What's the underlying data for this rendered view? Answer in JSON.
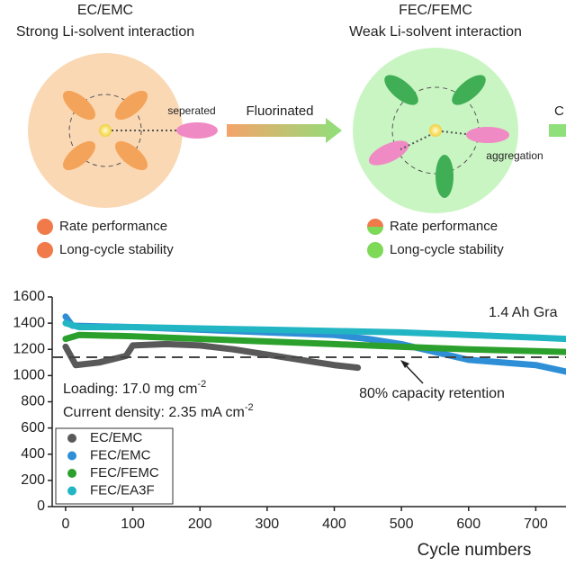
{
  "diagram": {
    "left": {
      "title": "EC/EMC",
      "subtitle": "Strong Li-solvent interaction",
      "label": "seperated"
    },
    "arrow_label": "Fluorinated",
    "right": {
      "title": "FEC/FEMC",
      "subtitle": "Weak Li-solvent interaction",
      "label": "aggregation"
    },
    "next_label": "C",
    "legend_left": [
      "Rate performance",
      "Long-cycle stability"
    ],
    "legend_right": [
      "Rate performance",
      "Long-cycle stability"
    ]
  },
  "chart_data": {
    "type": "line",
    "x_label": "Cycle numbers",
    "xlim": [
      -20,
      745
    ],
    "ylim": [
      0,
      1600
    ],
    "xticks": [
      0,
      100,
      200,
      300,
      400,
      500,
      600,
      700
    ],
    "yticks": [
      0,
      200,
      400,
      600,
      800,
      1000,
      1200,
      1400,
      1600
    ],
    "reference_line": 1140,
    "reference_label": "80% capacity retention",
    "cell_label": "1.4 Ah Gra",
    "conditions": [
      {
        "text": "Loading: 17.0 mg cm",
        "sup": "-2"
      },
      {
        "text": "Current density: 2.35 mA cm",
        "sup": "-2"
      }
    ],
    "series": [
      {
        "name": "EC/EMC",
        "color": "#595959",
        "x": [
          0,
          15,
          50,
          90,
          100,
          150,
          200,
          250,
          300,
          350,
          400,
          435
        ],
        "values": [
          1220,
          1080,
          1100,
          1150,
          1230,
          1240,
          1230,
          1200,
          1160,
          1120,
          1080,
          1060
        ]
      },
      {
        "name": "FEC/EMC",
        "color": "#2e8fd6",
        "x": [
          0,
          10,
          100,
          200,
          300,
          400,
          450,
          500,
          550,
          600,
          700,
          745
        ],
        "values": [
          1450,
          1380,
          1370,
          1350,
          1330,
          1310,
          1280,
          1240,
          1180,
          1120,
          1080,
          1030
        ]
      },
      {
        "name": "FEC/FEMC",
        "color": "#2ca02c",
        "x": [
          0,
          20,
          100,
          200,
          300,
          400,
          500,
          600,
          745
        ],
        "values": [
          1280,
          1310,
          1300,
          1280,
          1260,
          1240,
          1220,
          1200,
          1180
        ]
      },
      {
        "name": "FEC/EA3F",
        "color": "#22b5c4",
        "x": [
          0,
          20,
          100,
          200,
          300,
          400,
          500,
          600,
          700,
          745
        ],
        "values": [
          1400,
          1370,
          1370,
          1360,
          1350,
          1340,
          1330,
          1310,
          1290,
          1280
        ]
      }
    ]
  }
}
